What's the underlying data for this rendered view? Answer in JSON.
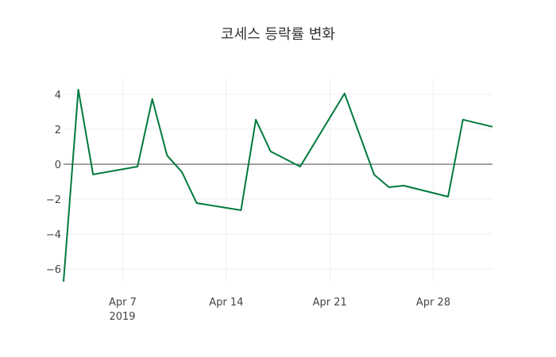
{
  "chart_data": {
    "type": "line",
    "title": "코세스 등락률 변화",
    "xlabel": "",
    "ylabel": "",
    "x": [
      "2019-04-03",
      "2019-04-04",
      "2019-04-05",
      "2019-04-08",
      "2019-04-09",
      "2019-04-10",
      "2019-04-11",
      "2019-04-12",
      "2019-04-15",
      "2019-04-16",
      "2019-04-17",
      "2019-04-19",
      "2019-04-22",
      "2019-04-24",
      "2019-04-25",
      "2019-04-26",
      "2019-04-29",
      "2019-04-30",
      "2019-05-02"
    ],
    "series": [
      {
        "name": "등락률",
        "color": "#007a3d",
        "values": [
          -6.73,
          4.27,
          -0.59,
          -0.14,
          3.73,
          0.5,
          -0.45,
          -2.23,
          -2.64,
          2.55,
          0.73,
          -0.14,
          4.05,
          -0.6,
          -1.32,
          -1.23,
          -1.86,
          2.55,
          2.14
        ]
      }
    ],
    "xlim": [
      "2019-04-03",
      "2019-05-02"
    ],
    "ylim": [
      -6.73,
      4.86
    ],
    "yticks": [
      4,
      2,
      0,
      -2,
      -4,
      -6
    ],
    "ytick_labels": [
      "4",
      "2",
      "0",
      "−2",
      "−4",
      "−6"
    ],
    "xticks": [
      "2019-04-07",
      "2019-04-14",
      "2019-04-21",
      "2019-04-28"
    ],
    "xtick_labels": [
      "Apr 7",
      "Apr 14",
      "Apr 21",
      "Apr 28"
    ],
    "xtick_year": "2019",
    "grid": true,
    "legend": "none"
  }
}
